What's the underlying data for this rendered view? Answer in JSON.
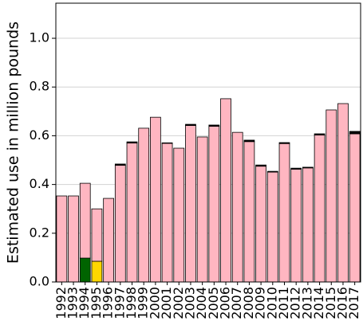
{
  "chart_data": {
    "type": "stacked_bar",
    "y_label": "Estimated use in million pounds",
    "categories": [
      "1992",
      "1993",
      "1994",
      "1995",
      "1996",
      "1997",
      "1998",
      "1999",
      "2000",
      "2001",
      "2002",
      "2003",
      "2004",
      "2005",
      "2006",
      "2007",
      "2008",
      "2009",
      "2010",
      "2011",
      "2012",
      "2013",
      "2014",
      "2015",
      "2016",
      "2017"
    ],
    "series": [
      {
        "color": "#006400",
        "values": [
          0,
          0,
          0.098,
          0,
          0,
          0,
          0,
          0,
          0,
          0,
          0,
          0,
          0,
          0,
          0,
          0,
          0,
          0,
          0,
          0,
          0,
          0,
          0,
          0,
          0,
          0
        ]
      },
      {
        "color": "#ffd700",
        "values": [
          0,
          0,
          0,
          0.085,
          0,
          0,
          0,
          0,
          0,
          0,
          0,
          0,
          0,
          0,
          0,
          0,
          0,
          0,
          0,
          0,
          0,
          0,
          0,
          0,
          0,
          0
        ]
      },
      {
        "color": "#ffb6c1",
        "values": [
          0.353,
          0.353,
          0.307,
          0.215,
          0.343,
          0.479,
          0.57,
          0.631,
          0.676,
          0.569,
          0.549,
          0.642,
          0.595,
          0.639,
          0.752,
          0.614,
          0.576,
          0.475,
          0.451,
          0.568,
          0.463,
          0.468,
          0.603,
          0.706,
          0.732,
          0.608
        ]
      },
      {
        "color": "#000000",
        "values": [
          0,
          0,
          0,
          0,
          0,
          0.005,
          0.005,
          0,
          0,
          0.002,
          0,
          0.005,
          0,
          0.005,
          0,
          0,
          0.006,
          0.005,
          0.003,
          0.004,
          0.004,
          0.003,
          0.005,
          0,
          0,
          0.01
        ]
      }
    ],
    "ylim": [
      0,
      1.144
    ],
    "yticks": [
      {
        "value": 0,
        "label": "0.0"
      },
      0.2,
      0.4,
      0.6,
      0.8,
      {
        "value": 1,
        "label": "1.0"
      }
    ],
    "grid": true
  }
}
